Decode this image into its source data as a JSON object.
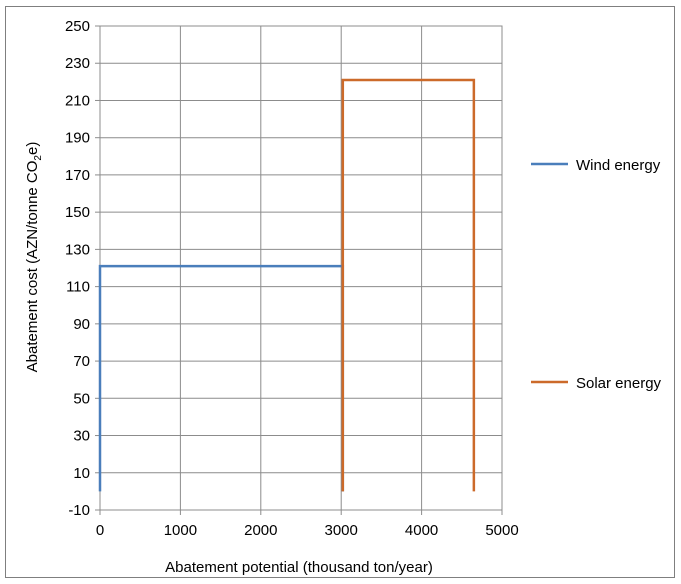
{
  "chart_data": {
    "type": "area",
    "title": "",
    "xlabel": "Abatement potential (thousand ton/year)",
    "ylabel_main": "Abatement cost (AZN/tonne CO",
    "ylabel_sub": "2",
    "ylabel_tail": "e)",
    "xlim": [
      0,
      5000
    ],
    "ylim": [
      -10,
      250
    ],
    "xticks": [
      0,
      1000,
      2000,
      3000,
      4000,
      5000
    ],
    "yticks": [
      -10,
      10,
      30,
      50,
      70,
      90,
      110,
      130,
      150,
      170,
      190,
      210,
      230,
      250
    ],
    "x_tick_labels": [
      "0",
      "1000",
      "2000",
      "3000",
      "4000",
      "5000"
    ],
    "y_tick_labels": [
      "-10",
      "10",
      "30",
      "50",
      "70",
      "90",
      "110",
      "130",
      "150",
      "170",
      "190",
      "210",
      "230",
      "250"
    ],
    "grid": true,
    "legend_position": "right",
    "series": [
      {
        "name": "Wind energy",
        "color": "#4a7ebb",
        "x_start": 0,
        "x_end": 3020,
        "cost": 121
      },
      {
        "name": "Solar energy",
        "color": "#cc6a2a",
        "x_start": 3020,
        "x_end": 4650,
        "cost": 221
      }
    ]
  }
}
